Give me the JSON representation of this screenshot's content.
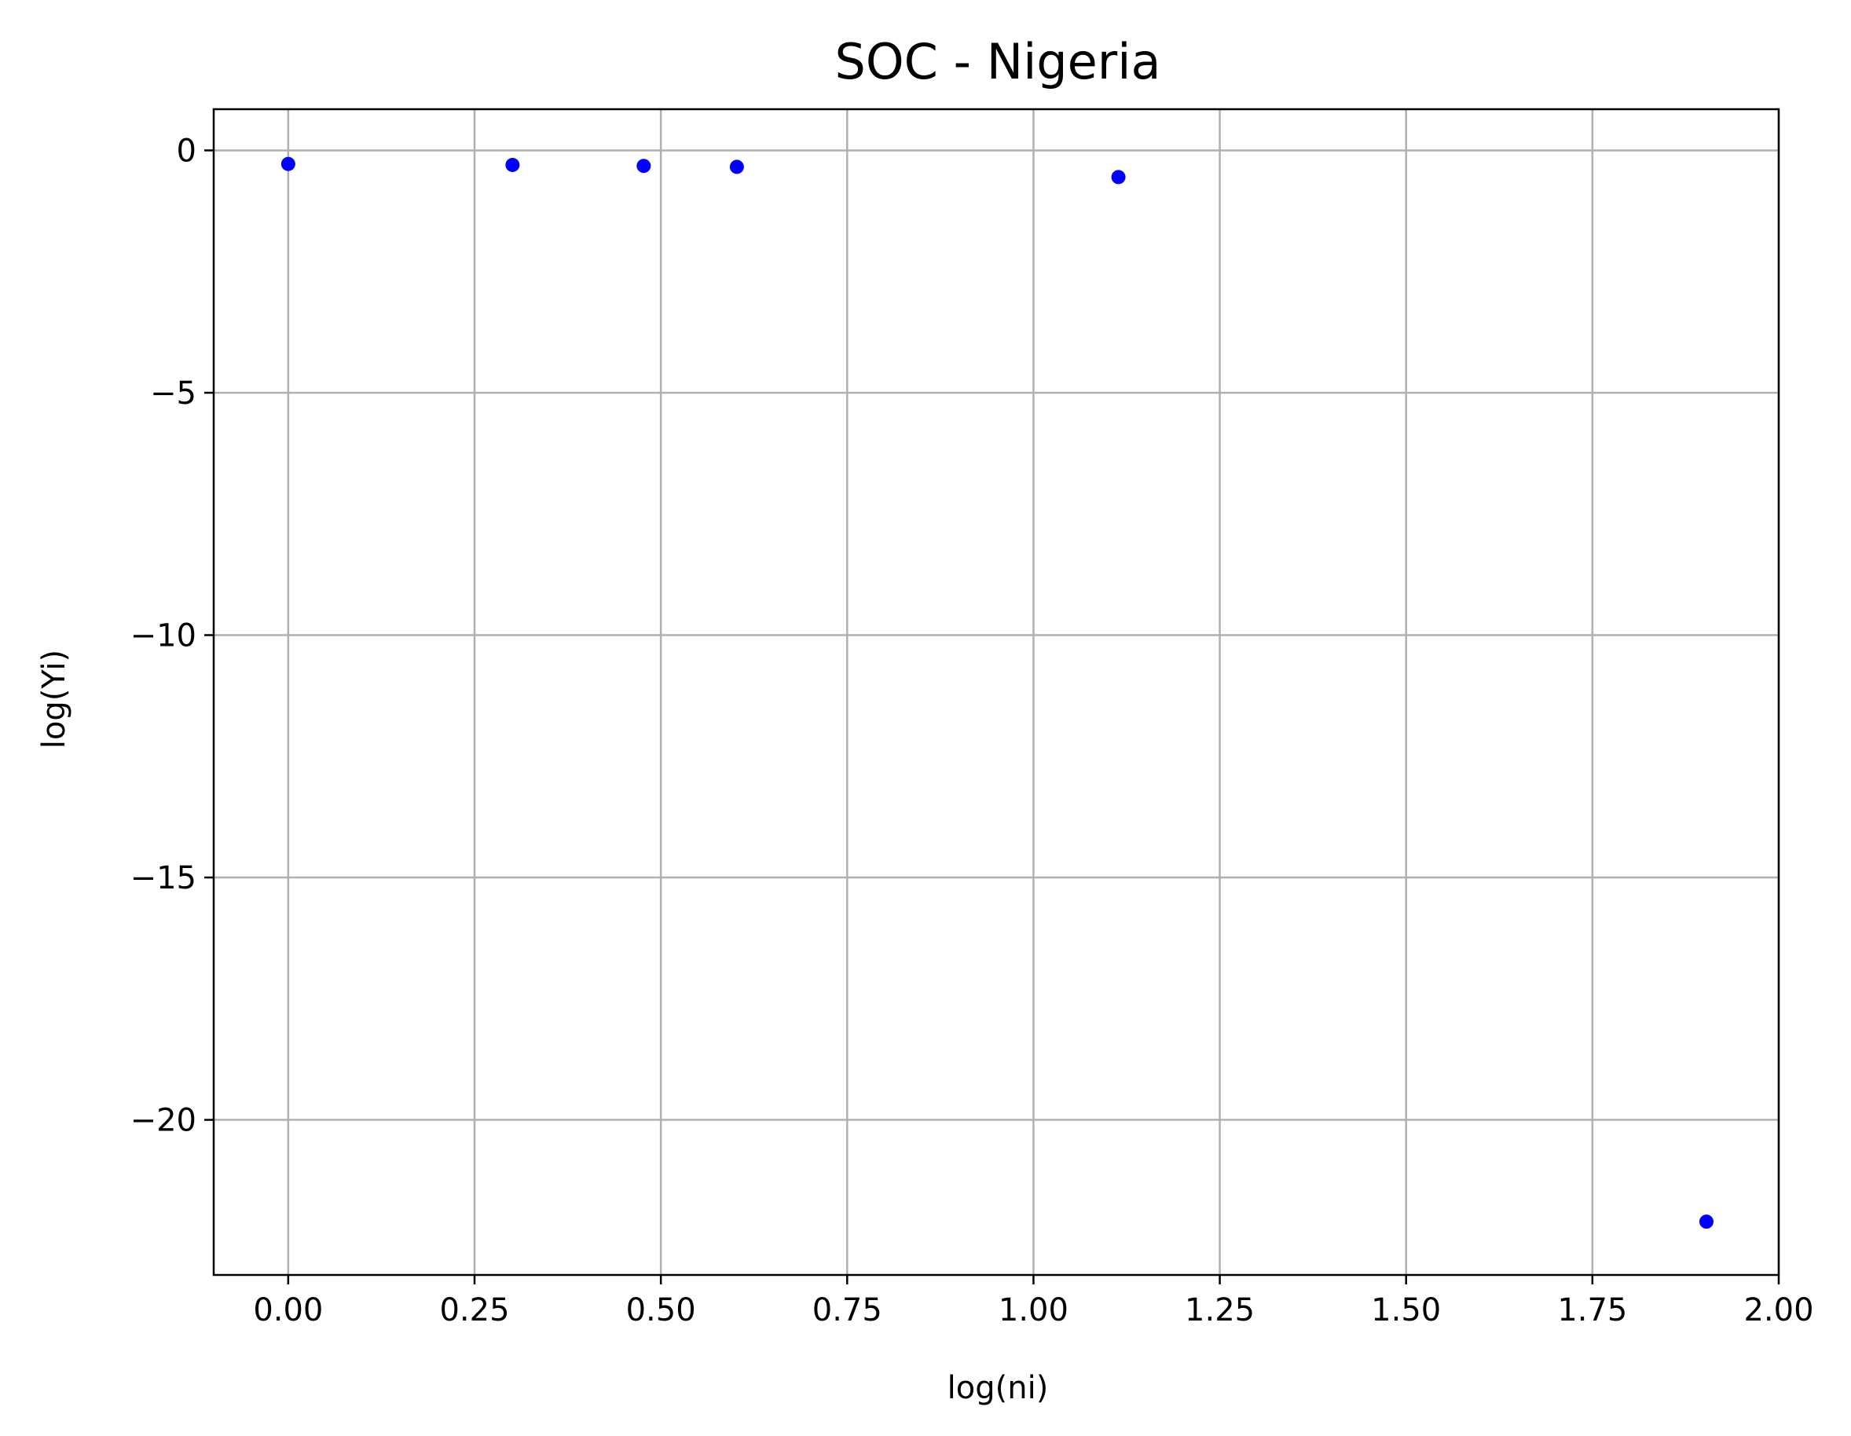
{
  "chart_data": {
    "type": "scatter",
    "title": "SOC - Nigeria",
    "xlabel": "log(ni)",
    "ylabel": "log(Yi)",
    "xlim": [
      -0.1,
      2.0
    ],
    "ylim": [
      -23.2,
      0.85
    ],
    "x_ticks": [
      0.0,
      0.25,
      0.5,
      0.75,
      1.0,
      1.25,
      1.5,
      1.75,
      2.0
    ],
    "x_tick_labels": [
      "0.00",
      "0.25",
      "0.50",
      "0.75",
      "1.00",
      "1.25",
      "1.50",
      "1.75",
      "2.00"
    ],
    "y_ticks": [
      0,
      -5,
      -10,
      -15,
      -20
    ],
    "y_tick_labels": [
      "0",
      "−5",
      "−10",
      "−15",
      "−20"
    ],
    "grid": true,
    "marker_color": "#0000ff",
    "points": [
      {
        "x": 0.0,
        "y": -0.28
      },
      {
        "x": 0.301,
        "y": -0.3
      },
      {
        "x": 0.477,
        "y": -0.32
      },
      {
        "x": 0.602,
        "y": -0.34
      },
      {
        "x": 1.114,
        "y": -0.55
      },
      {
        "x": 1.903,
        "y": -22.1
      }
    ]
  }
}
